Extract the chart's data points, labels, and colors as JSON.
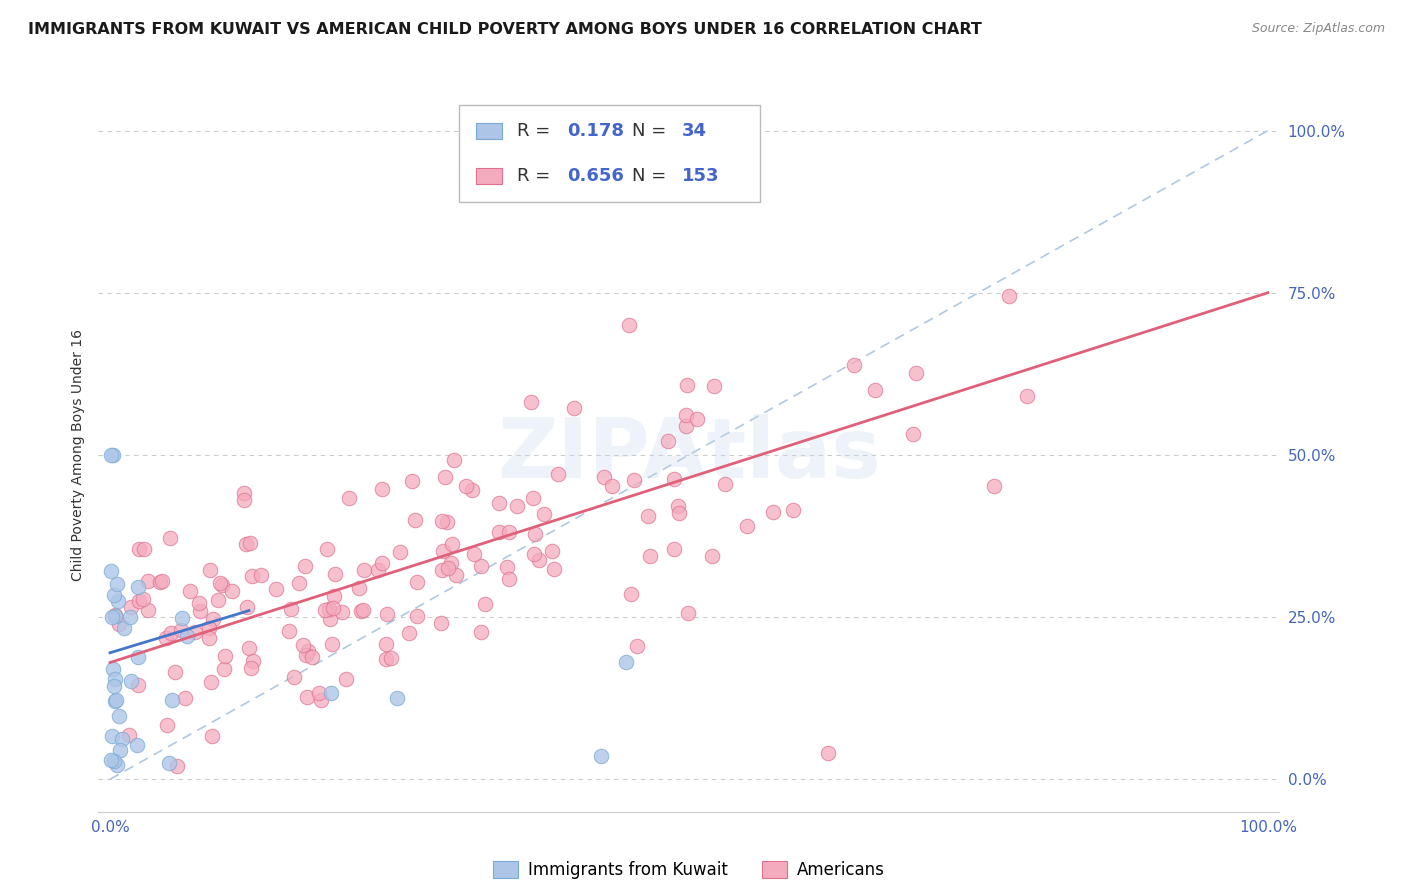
{
  "title": "IMMIGRANTS FROM KUWAIT VS AMERICAN CHILD POVERTY AMONG BOYS UNDER 16 CORRELATION CHART",
  "source": "Source: ZipAtlas.com",
  "ylabel": "Child Poverty Among Boys Under 16",
  "xtick_labels": [
    "0.0%",
    "100.0%"
  ],
  "ytick_labels": [
    "0.0%",
    "25.0%",
    "50.0%",
    "75.0%",
    "100.0%"
  ],
  "ytick_positions": [
    0.0,
    0.25,
    0.5,
    0.75,
    1.0
  ],
  "grid_color": "#cccccc",
  "background_color": "#ffffff",
  "watermark": "ZIPAtlas",
  "kuwait_color": "#adc6e8",
  "kuwait_edge": "#7aaad4",
  "american_color": "#f4abbe",
  "american_edge": "#e07090",
  "line_kuwait_color": "#4477cc",
  "line_american_color": "#e0607a",
  "dashed_line_color": "#b0c8e0",
  "title_fontsize": 11.5,
  "axis_label_fontsize": 10,
  "tick_fontsize": 11,
  "source_fontsize": 9,
  "legend_fontsize": 13
}
